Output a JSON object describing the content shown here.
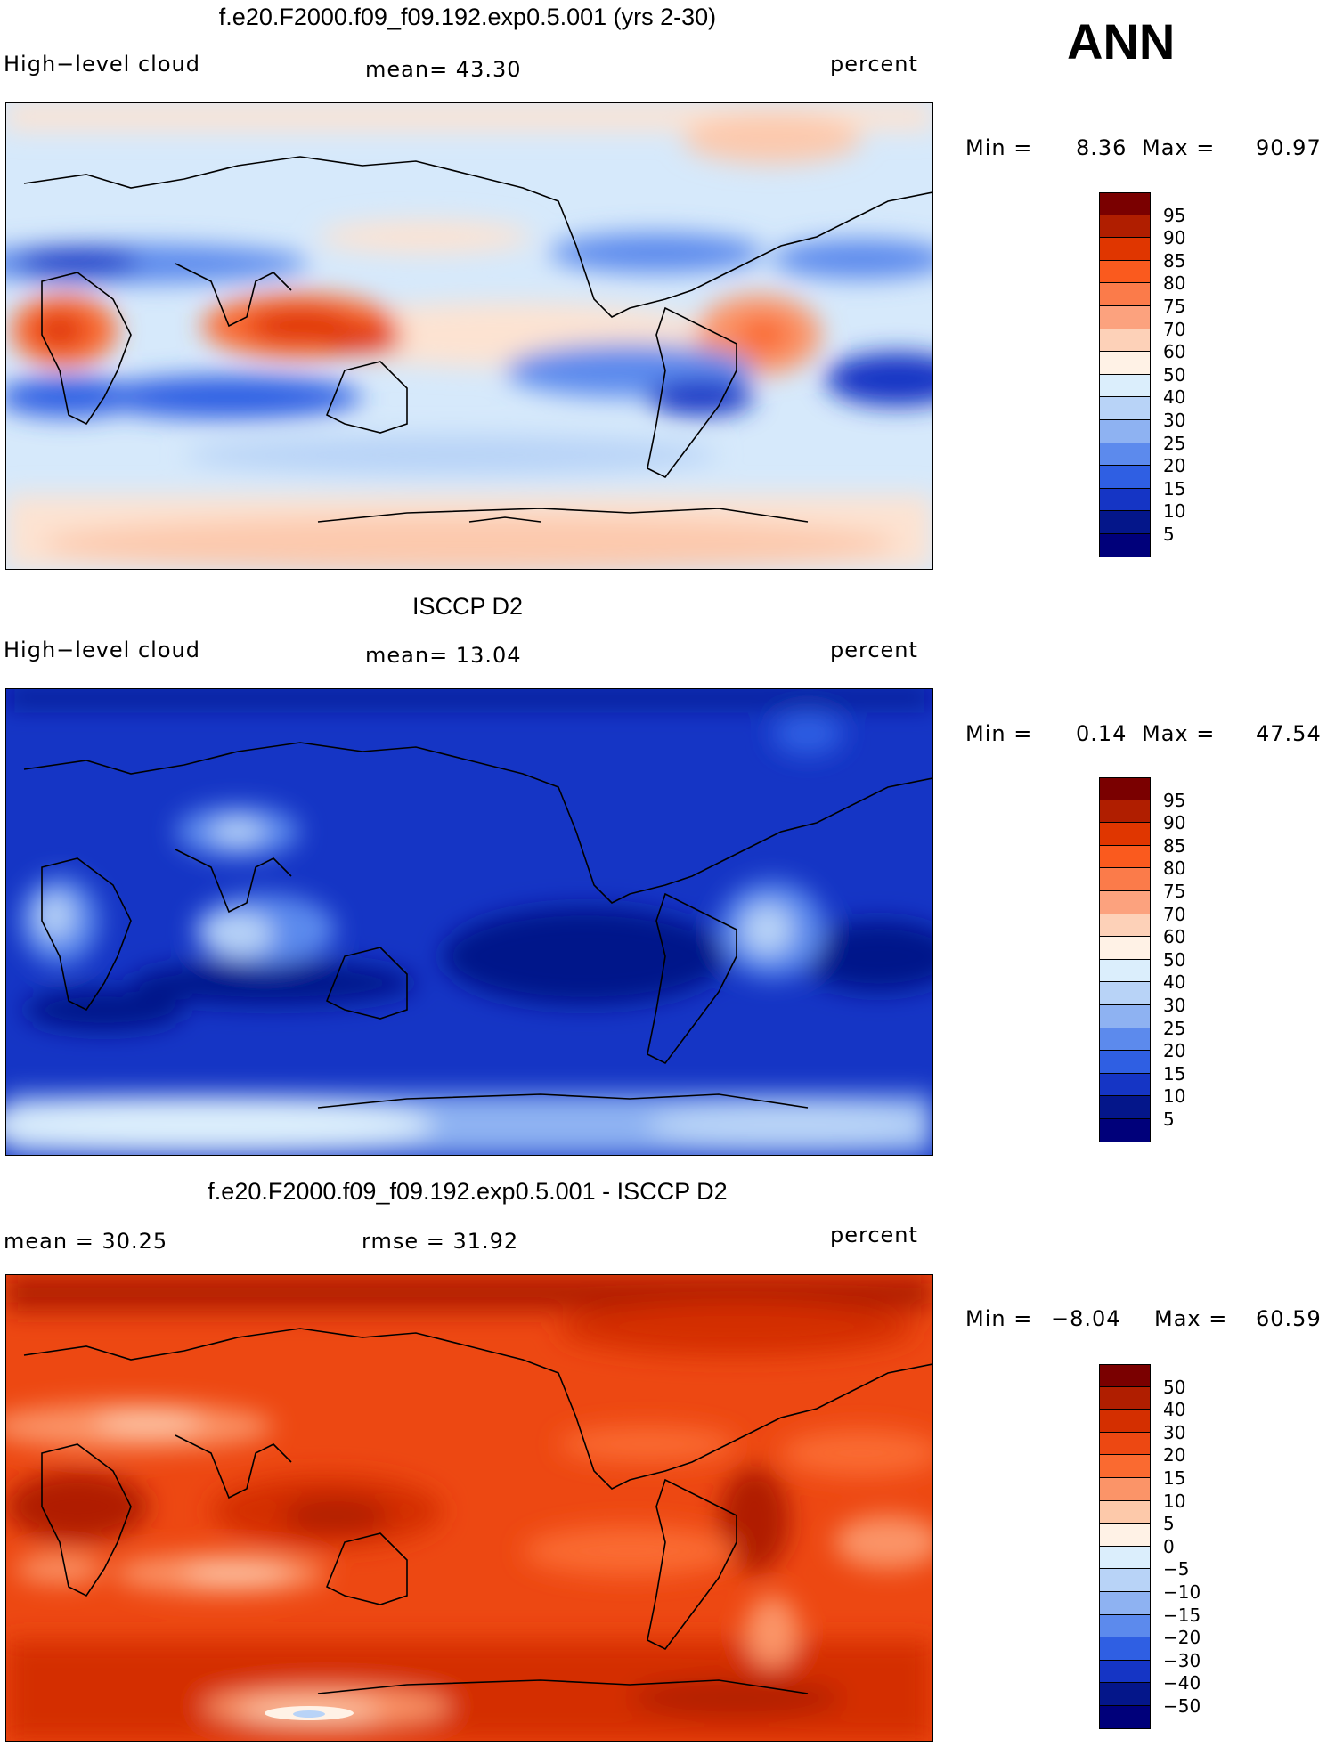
{
  "season": "ANN",
  "panels": [
    {
      "title": "f.e20.F2000.f09_f09.192.exp0.5.001 (yrs 2-30)",
      "left_label": "High−level cloud",
      "mid_label": "mean=   43.30",
      "units": "percent",
      "min_label": "Min =",
      "min_value": "8.36",
      "max_label": "Max =",
      "max_value": "90.97",
      "colorbar": {
        "levels": [
          "95",
          "90",
          "85",
          "80",
          "75",
          "70",
          "60",
          "50",
          "40",
          "30",
          "25",
          "20",
          "15",
          "10",
          "5"
        ],
        "colors": [
          "#7a0000",
          "#b01e00",
          "#e03600",
          "#fa5a1e",
          "#fb7b4a",
          "#fca27e",
          "#fdd1b8",
          "#fff2e6",
          "#dbeefc",
          "#b8d3f7",
          "#8eb2f2",
          "#5c8aed",
          "#2f5fe3",
          "#1535c5",
          "#04168a",
          "#00007a"
        ]
      }
    },
    {
      "title": "ISCCP D2",
      "left_label": "High−level cloud",
      "mid_label": "mean=   13.04",
      "units": "percent",
      "min_label": "Min =",
      "min_value": "0.14",
      "max_label": "Max =",
      "max_value": "47.54",
      "colorbar": {
        "levels": [
          "95",
          "90",
          "85",
          "80",
          "75",
          "70",
          "60",
          "50",
          "40",
          "30",
          "25",
          "20",
          "15",
          "10",
          "5"
        ],
        "colors": [
          "#7a0000",
          "#b01e00",
          "#e03600",
          "#fa5a1e",
          "#fb7b4a",
          "#fca27e",
          "#fdd1b8",
          "#fff2e6",
          "#dbeefc",
          "#b8d3f7",
          "#8eb2f2",
          "#5c8aed",
          "#2f5fe3",
          "#1535c5",
          "#04168a",
          "#00007a"
        ]
      }
    },
    {
      "title": "f.e20.F2000.f09_f09.192.exp0.5.001 - ISCCP D2",
      "left_label": "mean =   30.25",
      "mid_label": "rmse =   31.92",
      "units": "percent",
      "min_label": "Min =",
      "min_value": "−8.04",
      "max_label": "Max =",
      "max_value": "60.59",
      "colorbar": {
        "levels": [
          "50",
          "40",
          "30",
          "20",
          "15",
          "10",
          "5",
          "0",
          "−5",
          "−10",
          "−15",
          "−20",
          "−30",
          "−40",
          "−50"
        ],
        "colors": [
          "#7a0000",
          "#b01e00",
          "#d42f00",
          "#ed4812",
          "#fa6a30",
          "#fb9468",
          "#fdc9aa",
          "#fff2e6",
          "#dbeefc",
          "#b8d3f7",
          "#8eb2f2",
          "#5c8aed",
          "#2f5fe3",
          "#1535c5",
          "#04168a",
          "#00007a"
        ]
      }
    }
  ]
}
